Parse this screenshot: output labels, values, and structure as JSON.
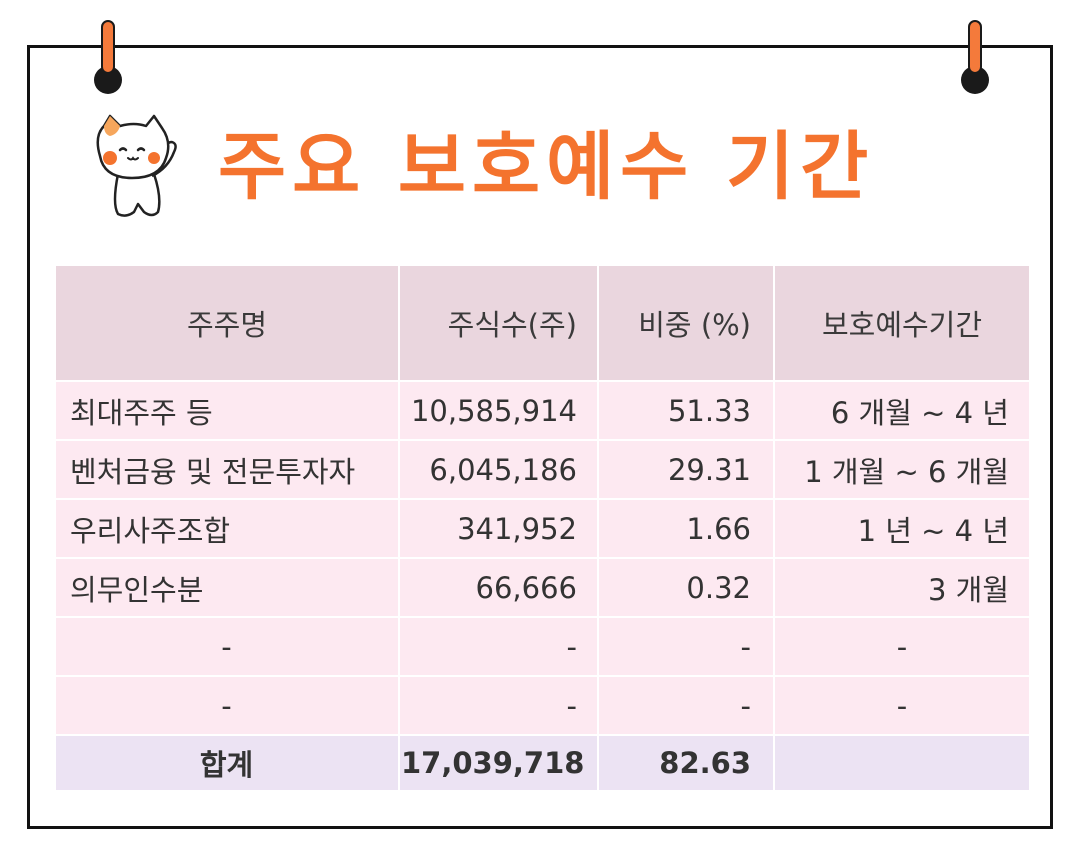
{
  "title": "주요 보호예수 기간",
  "colors": {
    "accent": "#f4732e",
    "header_bg": "#ead6de",
    "row_bg": "#fde9f1",
    "total_bg": "#ece3f3"
  },
  "icons": {
    "mascot": "cat-mascot-icon"
  },
  "table": {
    "headers": [
      "주주명",
      "주식수(주)",
      "비중 (%)",
      "보호예수기간"
    ],
    "rows": [
      {
        "name": "최대주주 등",
        "shares": "10,585,914",
        "ratio": "51.33",
        "period": "6 개월 ~ 4 년"
      },
      {
        "name": "벤처금융 및 전문투자자",
        "shares": "6,045,186",
        "ratio": "29.31",
        "period": "1 개월 ~ 6 개월"
      },
      {
        "name": "우리사주조합",
        "shares": "341,952",
        "ratio": "1.66",
        "period": "1 년 ~ 4 년"
      },
      {
        "name": "의무인수분",
        "shares": "66,666",
        "ratio": "0.32",
        "period": "3 개월"
      },
      {
        "name": "-",
        "shares": "-",
        "ratio": "-",
        "period": "-"
      },
      {
        "name": "-",
        "shares": "-",
        "ratio": "-",
        "period": "-"
      }
    ],
    "total": {
      "name": "합계",
      "shares": "17,039,718",
      "ratio": "82.63",
      "period": ""
    }
  }
}
